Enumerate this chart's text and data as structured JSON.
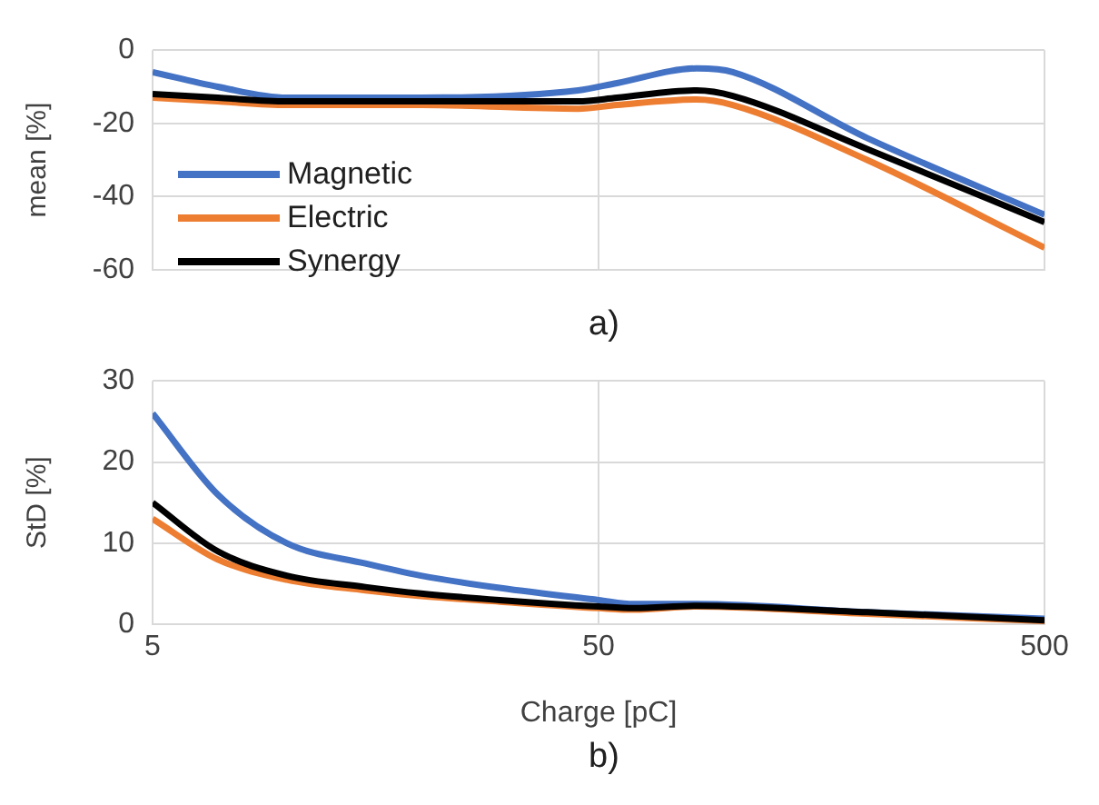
{
  "chart_data": [
    {
      "type": "line",
      "ylabel": "mean [%]",
      "annotations": [
        "a)"
      ],
      "log": "x",
      "xlim": [
        5,
        500
      ],
      "xticks": [
        5,
        50,
        500
      ],
      "ylim": [
        -60,
        0
      ],
      "yticks": [
        -60,
        -40,
        -20,
        0
      ],
      "grid": true,
      "legend": "left",
      "tick_labels": "y",
      "marker": "none",
      "line_style": "solid",
      "x": [
        5,
        7,
        10,
        20,
        45,
        55,
        83,
        100,
        200,
        500
      ],
      "series": [
        {
          "name": "Magnetic",
          "color": "#4472c4",
          "values": [
            -6,
            -10,
            -13,
            -13,
            -11,
            -9,
            -5,
            -6,
            -24,
            -45
          ]
        },
        {
          "name": "Electric",
          "color": "#ed7d31",
          "values": [
            -13,
            -14,
            -15,
            -15,
            -16,
            -15,
            -13.5,
            -15,
            -30,
            -54
          ]
        },
        {
          "name": "Synergy",
          "color": "#000000",
          "values": [
            -12,
            -13,
            -14,
            -14,
            -14,
            -13,
            -11,
            -12.5,
            -27,
            -47
          ]
        }
      ]
    },
    {
      "type": "line",
      "xlabel": "Charge [pC]",
      "ylabel": "StD [%]",
      "annotations": [
        "b)"
      ],
      "log": "x",
      "xlim": [
        5,
        500
      ],
      "xticks": [
        5,
        50,
        500
      ],
      "ylim": [
        0,
        30
      ],
      "yticks": [
        0,
        10,
        20,
        30
      ],
      "grid": true,
      "marker": "none",
      "line_style": "solid",
      "x": [
        5,
        7,
        10,
        15,
        20,
        30,
        50,
        60,
        83,
        200,
        500
      ],
      "series": [
        {
          "color": "#4472c4",
          "values": [
            26,
            16,
            10,
            7.5,
            6,
            4.5,
            3,
            2.5,
            2.5,
            1.5,
            0.7
          ]
        },
        {
          "color": "#ed7d31",
          "values": [
            13,
            8,
            5.5,
            4.2,
            3.5,
            2.8,
            2,
            1.8,
            2.2,
            1.3,
            0.4
          ]
        },
        {
          "color": "#000000",
          "values": [
            15,
            9,
            6,
            4.6,
            3.8,
            3,
            2.2,
            2,
            2.3,
            1.5,
            0.5
          ]
        }
      ]
    }
  ]
}
